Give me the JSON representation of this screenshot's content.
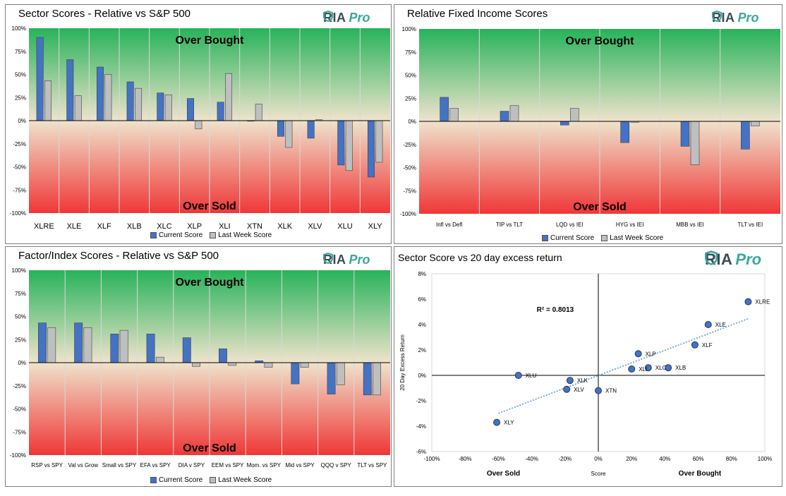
{
  "branding": {
    "logo_text": "RIA",
    "logo_suffix": "Pro"
  },
  "colors": {
    "current": "#4472c4",
    "last": "#bfbfbf",
    "green_top": "#27b35a",
    "beige_mid": "#efe3cc",
    "red_bottom": "#ef3737",
    "scatter_point": "#4472c4",
    "trendline": "#5b9bd5"
  },
  "legend": {
    "current_label": "Current Score",
    "last_label": "Last Week Score"
  },
  "chart_data": [
    {
      "id": "sector",
      "type": "bar",
      "title": "Sector Scores - Relative vs S&P 500",
      "over_bought_label": "Over Bought",
      "over_sold_label": "Over Sold",
      "ylim": [
        -100,
        100
      ],
      "yticks": [
        "100%",
        "75%",
        "50%",
        "25%",
        "0%",
        "-25%",
        "-50%",
        "-75%",
        "-100%"
      ],
      "categories": [
        "XLRE",
        "XLE",
        "XLF",
        "XLB",
        "XLC",
        "XLP",
        "XLI",
        "XTN",
        "XLK",
        "XLV",
        "XLU",
        "XLY"
      ],
      "series": [
        {
          "name": "Current Score",
          "values": [
            90,
            66,
            58,
            42,
            30,
            24,
            20,
            0,
            -17,
            -19,
            -48,
            -61
          ]
        },
        {
          "name": "Last Week Score",
          "values": [
            43,
            27,
            50,
            35,
            28,
            -9,
            51,
            18,
            -29,
            1,
            -54,
            -45
          ]
        }
      ]
    },
    {
      "id": "fixed",
      "type": "bar",
      "title": "Relative Fixed Income Scores",
      "over_bought_label": "Over Bought",
      "over_sold_label": "Over Sold",
      "ylim": [
        -100,
        100
      ],
      "yticks": [
        "100%",
        "75%",
        "50%",
        "25%",
        "0%",
        "-25%",
        "-50%",
        "-75%",
        "-100%"
      ],
      "categories": [
        "Infl vs Defl",
        "TIP vs TLT",
        "LQD vs IEI",
        "HYG vs IEI",
        "MBB vs IEI",
        "TLT vs IEI"
      ],
      "series": [
        {
          "name": "Current Score",
          "values": [
            26,
            11,
            -4,
            -23,
            -27,
            -30
          ]
        },
        {
          "name": "Last Week Score",
          "values": [
            14,
            17,
            14,
            -1,
            -47,
            -5
          ]
        }
      ]
    },
    {
      "id": "factor",
      "type": "bar",
      "title": "Factor/Index Scores - Relative vs S&P 500",
      "over_bought_label": "Over Bought",
      "over_sold_label": "Over Sold",
      "ylim": [
        -100,
        100
      ],
      "yticks": [
        "100%",
        "75%",
        "50%",
        "25%",
        "0%",
        "-25%",
        "-50%",
        "-75%",
        "-100%"
      ],
      "categories": [
        "RSP vs SPY",
        "Val vs Grow",
        "Small vs SPY",
        "EFA vs SPY",
        "DIA v SPY",
        "EEM vs SPY",
        "Mom. vs SPY",
        "Mid vs SPY",
        "QQQ v SPY",
        "TLT vs SPY"
      ],
      "series": [
        {
          "name": "Current Score",
          "values": [
            43,
            43,
            31,
            31,
            27,
            15,
            2,
            -23,
            -34,
            -35
          ]
        },
        {
          "name": "Last Week Score",
          "values": [
            38,
            38,
            35,
            6,
            -4,
            -3,
            -5,
            -5,
            -24,
            -35
          ]
        }
      ]
    },
    {
      "id": "scatter",
      "type": "scatter",
      "title": "Sector Score vs 20 day excess return",
      "xlabel": "Score",
      "ylabel": "20 Day Excess Return",
      "xlim": [
        -100,
        100
      ],
      "ylim": [
        -6,
        8
      ],
      "xticks": [
        "-100%",
        "-80%",
        "-60%",
        "-40%",
        "-20%",
        "0%",
        "20%",
        "40%",
        "60%",
        "80%",
        "100%"
      ],
      "yticks": [
        "8%",
        "6%",
        "4%",
        "2%",
        "0%",
        "-2%",
        "-4%",
        "-6%"
      ],
      "annotation": "R² = 0.8013",
      "left_label": "Over Sold",
      "right_label": "Over Bought",
      "trendline": {
        "slope": 0.0497,
        "intercept": -0.01
      },
      "points": [
        {
          "label": "XLRE",
          "x": 90,
          "y": 5.8
        },
        {
          "label": "XLE",
          "x": 66,
          "y": 4.0
        },
        {
          "label": "XLF",
          "x": 58,
          "y": 2.4
        },
        {
          "label": "XLB",
          "x": 42,
          "y": 0.6
        },
        {
          "label": "XLC",
          "x": 30,
          "y": 0.6
        },
        {
          "label": "XLP",
          "x": 24,
          "y": 1.7
        },
        {
          "label": "XLI",
          "x": 20,
          "y": 0.5
        },
        {
          "label": "XTN",
          "x": 0,
          "y": -1.2
        },
        {
          "label": "XLK",
          "x": -17,
          "y": -0.4
        },
        {
          "label": "XLV",
          "x": -19,
          "y": -1.1
        },
        {
          "label": "XLU",
          "x": -48,
          "y": 0.0
        },
        {
          "label": "XLY",
          "x": -61,
          "y": -3.7
        }
      ]
    }
  ]
}
